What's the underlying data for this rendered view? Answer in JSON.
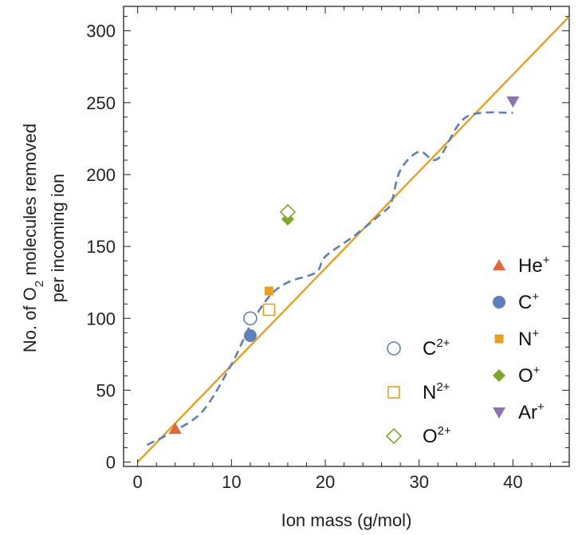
{
  "chart_data": {
    "type": "scatter",
    "xlabel": "Ion mass (g/mol)",
    "ylabel_line1_parts": [
      "No. of O",
      "2",
      " molecules removed"
    ],
    "ylabel_line2": "per incoming ion",
    "xlim": [
      -1.5,
      46
    ],
    "ylim": [
      -3,
      317
    ],
    "x_ticks": [
      0,
      10,
      20,
      30,
      40
    ],
    "y_ticks": [
      0,
      50,
      100,
      150,
      200,
      250,
      300
    ],
    "grid": false,
    "fit_line": {
      "x": [
        0,
        46
      ],
      "y": [
        0,
        310
      ],
      "color": "#e69f21"
    },
    "dashed_curve": {
      "color": "#5d80bb",
      "points": [
        [
          1,
          12
        ],
        [
          4,
          22
        ],
        [
          7,
          36
        ],
        [
          10,
          68
        ],
        [
          12,
          95
        ],
        [
          14,
          115
        ],
        [
          16,
          125
        ],
        [
          19,
          132
        ],
        [
          20,
          143
        ],
        [
          23,
          157
        ],
        [
          26,
          173
        ],
        [
          27,
          180
        ],
        [
          28,
          203
        ],
        [
          30,
          216
        ],
        [
          32,
          211
        ],
        [
          35,
          240
        ],
        [
          40,
          243
        ]
      ]
    },
    "series": [
      {
        "base": "He",
        "charge": "+",
        "marker": "triangle-up",
        "filled": true,
        "color": "#e4653a",
        "points": [
          [
            4,
            23
          ]
        ]
      },
      {
        "base": "C",
        "charge": "+",
        "marker": "circle",
        "filled": true,
        "color": "#5d80bb",
        "points": [
          [
            12,
            88
          ]
        ]
      },
      {
        "base": "N",
        "charge": "+",
        "marker": "square",
        "filled": true,
        "color": "#e69f21",
        "points": [
          [
            14,
            119
          ]
        ]
      },
      {
        "base": "O",
        "charge": "+",
        "marker": "diamond",
        "filled": true,
        "color": "#7ca92d",
        "points": [
          [
            16,
            169
          ]
        ]
      },
      {
        "base": "Ar",
        "charge": "+",
        "marker": "triangle-down",
        "filled": true,
        "color": "#8d72b5",
        "points": [
          [
            40,
            251
          ]
        ]
      },
      {
        "base": "C",
        "charge": "2+",
        "marker": "circle",
        "filled": false,
        "color": "#5d80bb",
        "points": [
          [
            12,
            100
          ]
        ]
      },
      {
        "base": "N",
        "charge": "2+",
        "marker": "square",
        "filled": false,
        "color": "#e69f21",
        "points": [
          [
            14,
            106
          ]
        ]
      },
      {
        "base": "O",
        "charge": "2+",
        "marker": "diamond",
        "filled": false,
        "color": "#7ca92d",
        "points": [
          [
            16,
            174
          ]
        ]
      }
    ],
    "legend_placement": "bottom-right"
  }
}
